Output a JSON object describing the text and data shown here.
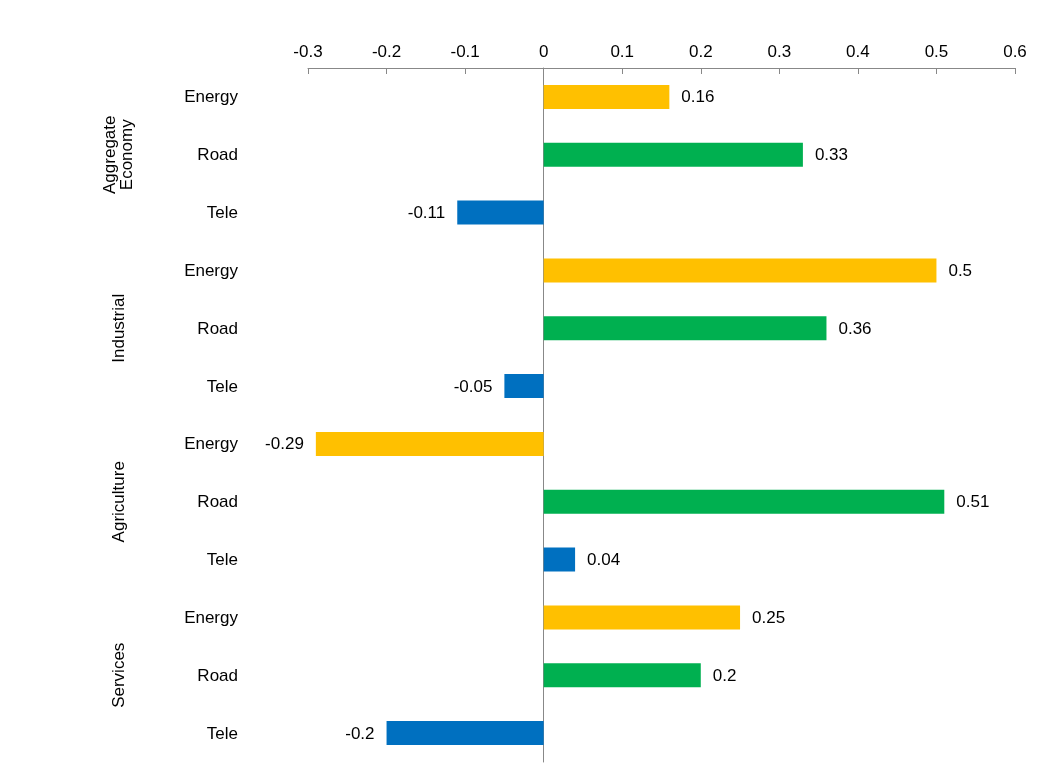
{
  "chart_data": {
    "type": "bar",
    "orientation": "horizontal",
    "categories": [
      "Energy",
      "Road",
      "Tele",
      "Energy",
      "Road",
      "Tele",
      "Energy",
      "Road",
      "Tele",
      "Energy",
      "Road",
      "Tele"
    ],
    "values": [
      0.16,
      0.33,
      -0.11,
      0.5,
      0.36,
      -0.05,
      -0.29,
      0.51,
      0.04,
      0.25,
      0.2,
      -0.2
    ],
    "colors": [
      "#ffc000",
      "#00b050",
      "#0070c0",
      "#ffc000",
      "#00b050",
      "#0070c0",
      "#ffc000",
      "#00b050",
      "#0070c0",
      "#ffc000",
      "#00b050",
      "#0070c0"
    ],
    "xlim": [
      -0.3,
      0.6
    ],
    "xticks": [
      -0.3,
      -0.2,
      -0.1,
      0,
      0.1,
      0.2,
      0.3,
      0.4,
      0.5,
      0.6
    ],
    "annotations": [
      "Aggregate Economy",
      "Industrial",
      "Agriculture",
      "Services"
    ],
    "data_labels": true
  }
}
